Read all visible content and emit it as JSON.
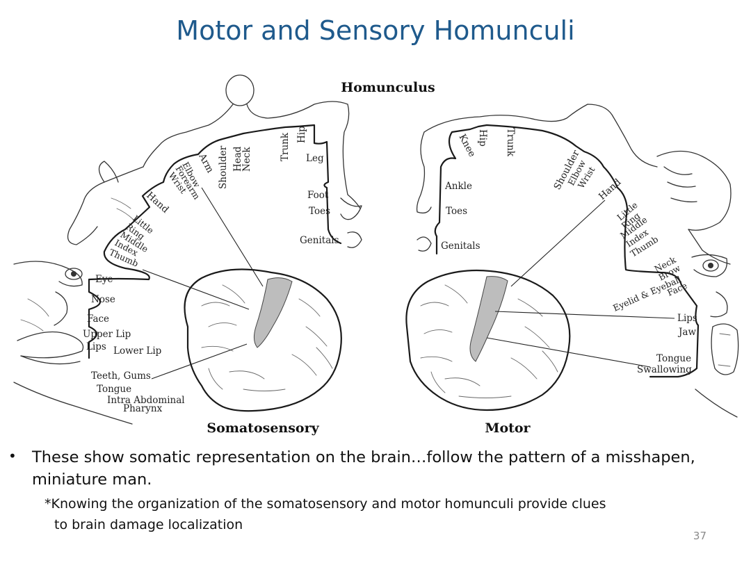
{
  "slide": {
    "title": "Motor and Sensory Homunculi",
    "page_number": "37"
  },
  "figure": {
    "heading": "Homunculus",
    "somatosensory": {
      "caption": "Somatosensory",
      "labels": {
        "shoulder": "Shoulder",
        "head": "Head",
        "neck": "Neck",
        "trunk": "Trunk",
        "hip": "Hip",
        "arm": "Arm",
        "elbow": "Elbow",
        "forearm": "Forearm",
        "wrist": "Wrist",
        "hand": "Hand",
        "little": "Little",
        "ring": "Ring",
        "middle": "Middle",
        "index": "Index",
        "thumb": "Thumb",
        "leg": "Leg",
        "foot": "Foot",
        "toes": "Toes",
        "genitals": "Genitals",
        "eye": "Eye",
        "nose": "Nose",
        "face": "Face",
        "upper_lip": "Upper Lip",
        "lips": "Lips",
        "lower_lip": "Lower Lip",
        "teeth_gums": "Teeth, Gums",
        "tongue": "Tongue",
        "intra_abdominal": "Intra Abdominal",
        "pharynx": "Pharynx"
      }
    },
    "motor": {
      "caption": "Motor",
      "labels": {
        "hip": "Hip",
        "knee": "Knee",
        "trunk": "Trunk",
        "ankle": "Ankle",
        "toes": "Toes",
        "genitals": "Genitals",
        "shoulder": "Shoulder",
        "elbow": "Elbow",
        "wrist": "Wrist",
        "hand": "Hand",
        "little": "Little",
        "ring": "Ring",
        "middle": "Middle",
        "index": "Index",
        "thumb": "Thumb",
        "neck": "Neck",
        "brow": "Brow",
        "eyelid_eyeball": "Eyelid & Eyeball",
        "face": "Face",
        "lips": "Lips",
        "jaw": "Jaw",
        "tongue": "Tongue",
        "swallowing": "Swallowing"
      }
    }
  },
  "bullets": [
    {
      "text": "These show somatic representation on the brain…follow the pattern of a misshapen, miniature man.",
      "note_line1": "*Knowing the organization of the somatosensory and motor homunculi provide clues",
      "note_line2": "to brain damage localization"
    }
  ]
}
